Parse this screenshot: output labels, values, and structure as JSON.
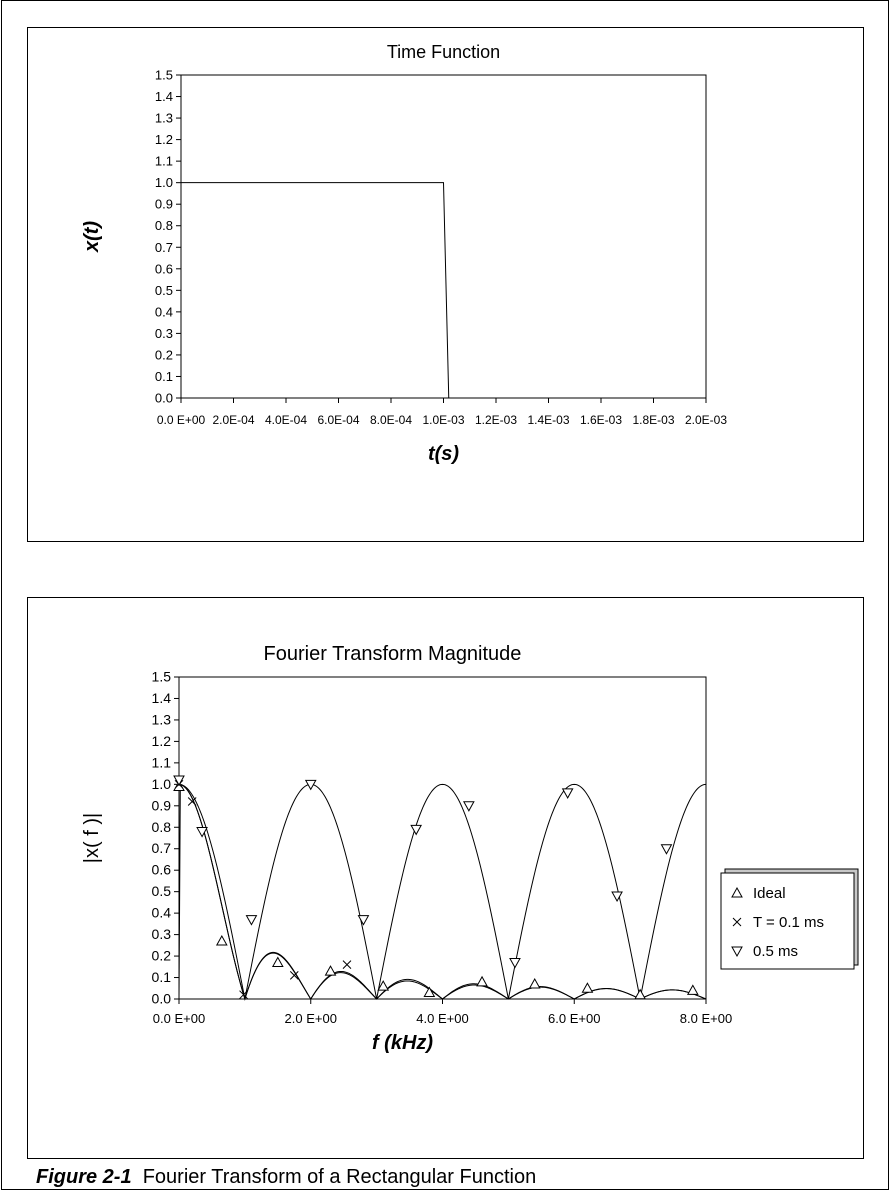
{
  "caption": {
    "label": "Figure 2-1",
    "text": "Fourier Transform of a Rectangular Function"
  },
  "chart_data": [
    {
      "type": "line",
      "title": "Time Function",
      "xlabel": "t(s)",
      "ylabel": "x(t)",
      "xlim": [
        0,
        0.002
      ],
      "ylim": [
        0,
        1.5
      ],
      "x_ticks": [
        "0.0 E+00",
        "2.0E-04",
        "4.0E-04",
        "6.0E-04",
        "8.0E-04",
        "1.0E-03",
        "1.2E-03",
        "1.4E-03",
        "1.6E-03",
        "1.8E-03",
        "2.0E-03"
      ],
      "y_ticks": [
        "0.0",
        "0.1",
        "0.2",
        "0.3",
        "0.4",
        "0.5",
        "0.6",
        "0.7",
        "0.8",
        "0.9",
        "1.0",
        "1.1",
        "1.2",
        "1.3",
        "1.4",
        "1.5"
      ],
      "grid": false,
      "series": [
        {
          "x": [
            0,
            0.001,
            0.00102
          ],
          "y": [
            1.0,
            1.0,
            0.0
          ]
        }
      ]
    },
    {
      "type": "line",
      "title": "Fourier Transform Magnitude",
      "xlabel": "f (kHz)",
      "ylabel": "|x( f )|",
      "xlim": [
        0,
        8
      ],
      "ylim": [
        0,
        1.5
      ],
      "x_ticks": [
        "0.0 E+00",
        "2.0 E+00",
        "4.0 E+00",
        "6.0 E+00",
        "8.0 E+00"
      ],
      "y_ticks": [
        "0.0",
        "0.1",
        "0.2",
        "0.3",
        "0.4",
        "0.5",
        "0.6",
        "0.7",
        "0.8",
        "0.9",
        "1.0",
        "1.1",
        "1.2",
        "1.3",
        "1.4",
        "1.5"
      ],
      "grid": false,
      "legend_position": "right",
      "series": [
        {
          "name": "Ideal",
          "marker": "triangle-up",
          "points": [
            [
              0.0,
              0.99
            ],
            [
              0.65,
              0.27
            ],
            [
              1.5,
              0.17
            ],
            [
              2.3,
              0.13
            ],
            [
              3.1,
              0.06
            ],
            [
              3.8,
              0.03
            ],
            [
              4.6,
              0.08
            ],
            [
              5.4,
              0.07
            ],
            [
              6.2,
              0.05
            ],
            [
              7.0,
              0.02
            ],
            [
              7.8,
              0.04
            ]
          ]
        },
        {
          "name": "T = 0.1 ms",
          "marker": "x",
          "points": [
            [
              0.0,
              1.0
            ],
            [
              0.2,
              0.92
            ],
            [
              0.98,
              0.02
            ],
            [
              1.75,
              0.11
            ],
            [
              2.55,
              0.16
            ]
          ]
        },
        {
          "name": "0.5 ms",
          "marker": "triangle-down",
          "points": [
            [
              0.0,
              1.02
            ],
            [
              0.35,
              0.78
            ],
            [
              1.1,
              0.37
            ],
            [
              2.0,
              1.0
            ],
            [
              2.8,
              0.37
            ],
            [
              3.6,
              0.79
            ],
            [
              4.4,
              0.9
            ],
            [
              5.1,
              0.17
            ],
            [
              5.9,
              0.96
            ],
            [
              6.65,
              0.48
            ],
            [
              7.4,
              0.7
            ]
          ]
        }
      ]
    }
  ]
}
